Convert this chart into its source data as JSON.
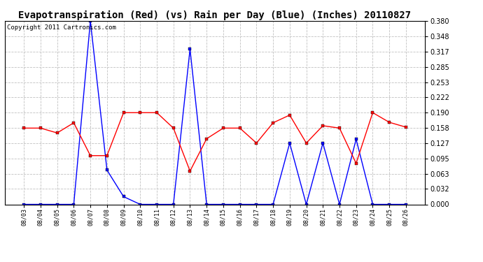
{
  "title": "Evapotranspiration (Red) (vs) Rain per Day (Blue) (Inches) 20110827",
  "copyright": "Copyright 2011 Cartronics.com",
  "x_labels": [
    "08/03",
    "08/04",
    "08/05",
    "08/06",
    "08/07",
    "08/08",
    "08/09",
    "08/10",
    "08/11",
    "08/12",
    "08/13",
    "08/14",
    "08/15",
    "08/16",
    "08/17",
    "08/18",
    "08/19",
    "08/20",
    "08/21",
    "08/22",
    "08/23",
    "08/24",
    "08/25",
    "08/26"
  ],
  "red_values": [
    0.158,
    0.158,
    0.148,
    0.169,
    0.101,
    0.101,
    0.19,
    0.19,
    0.19,
    0.158,
    0.069,
    0.136,
    0.158,
    0.158,
    0.127,
    0.169,
    0.185,
    0.127,
    0.163,
    0.158,
    0.085,
    0.19,
    0.17,
    0.16
  ],
  "blue_values": [
    0.0,
    0.0,
    0.0,
    0.0,
    0.38,
    0.071,
    0.016,
    0.0,
    0.0,
    0.0,
    0.322,
    0.0,
    0.0,
    0.0,
    0.0,
    0.0,
    0.127,
    0.0,
    0.127,
    0.0,
    0.135,
    0.0,
    0.0,
    0.0
  ],
  "ylim": [
    0.0,
    0.38
  ],
  "yticks": [
    0.0,
    0.032,
    0.063,
    0.095,
    0.127,
    0.158,
    0.19,
    0.222,
    0.253,
    0.285,
    0.317,
    0.348,
    0.38
  ],
  "red_color": "#ff0000",
  "blue_color": "#0000ff",
  "background_color": "#ffffff",
  "grid_color": "#c0c0c0",
  "title_fontsize": 10,
  "copyright_fontsize": 6.5,
  "tick_fontsize": 7,
  "xtick_fontsize": 6
}
